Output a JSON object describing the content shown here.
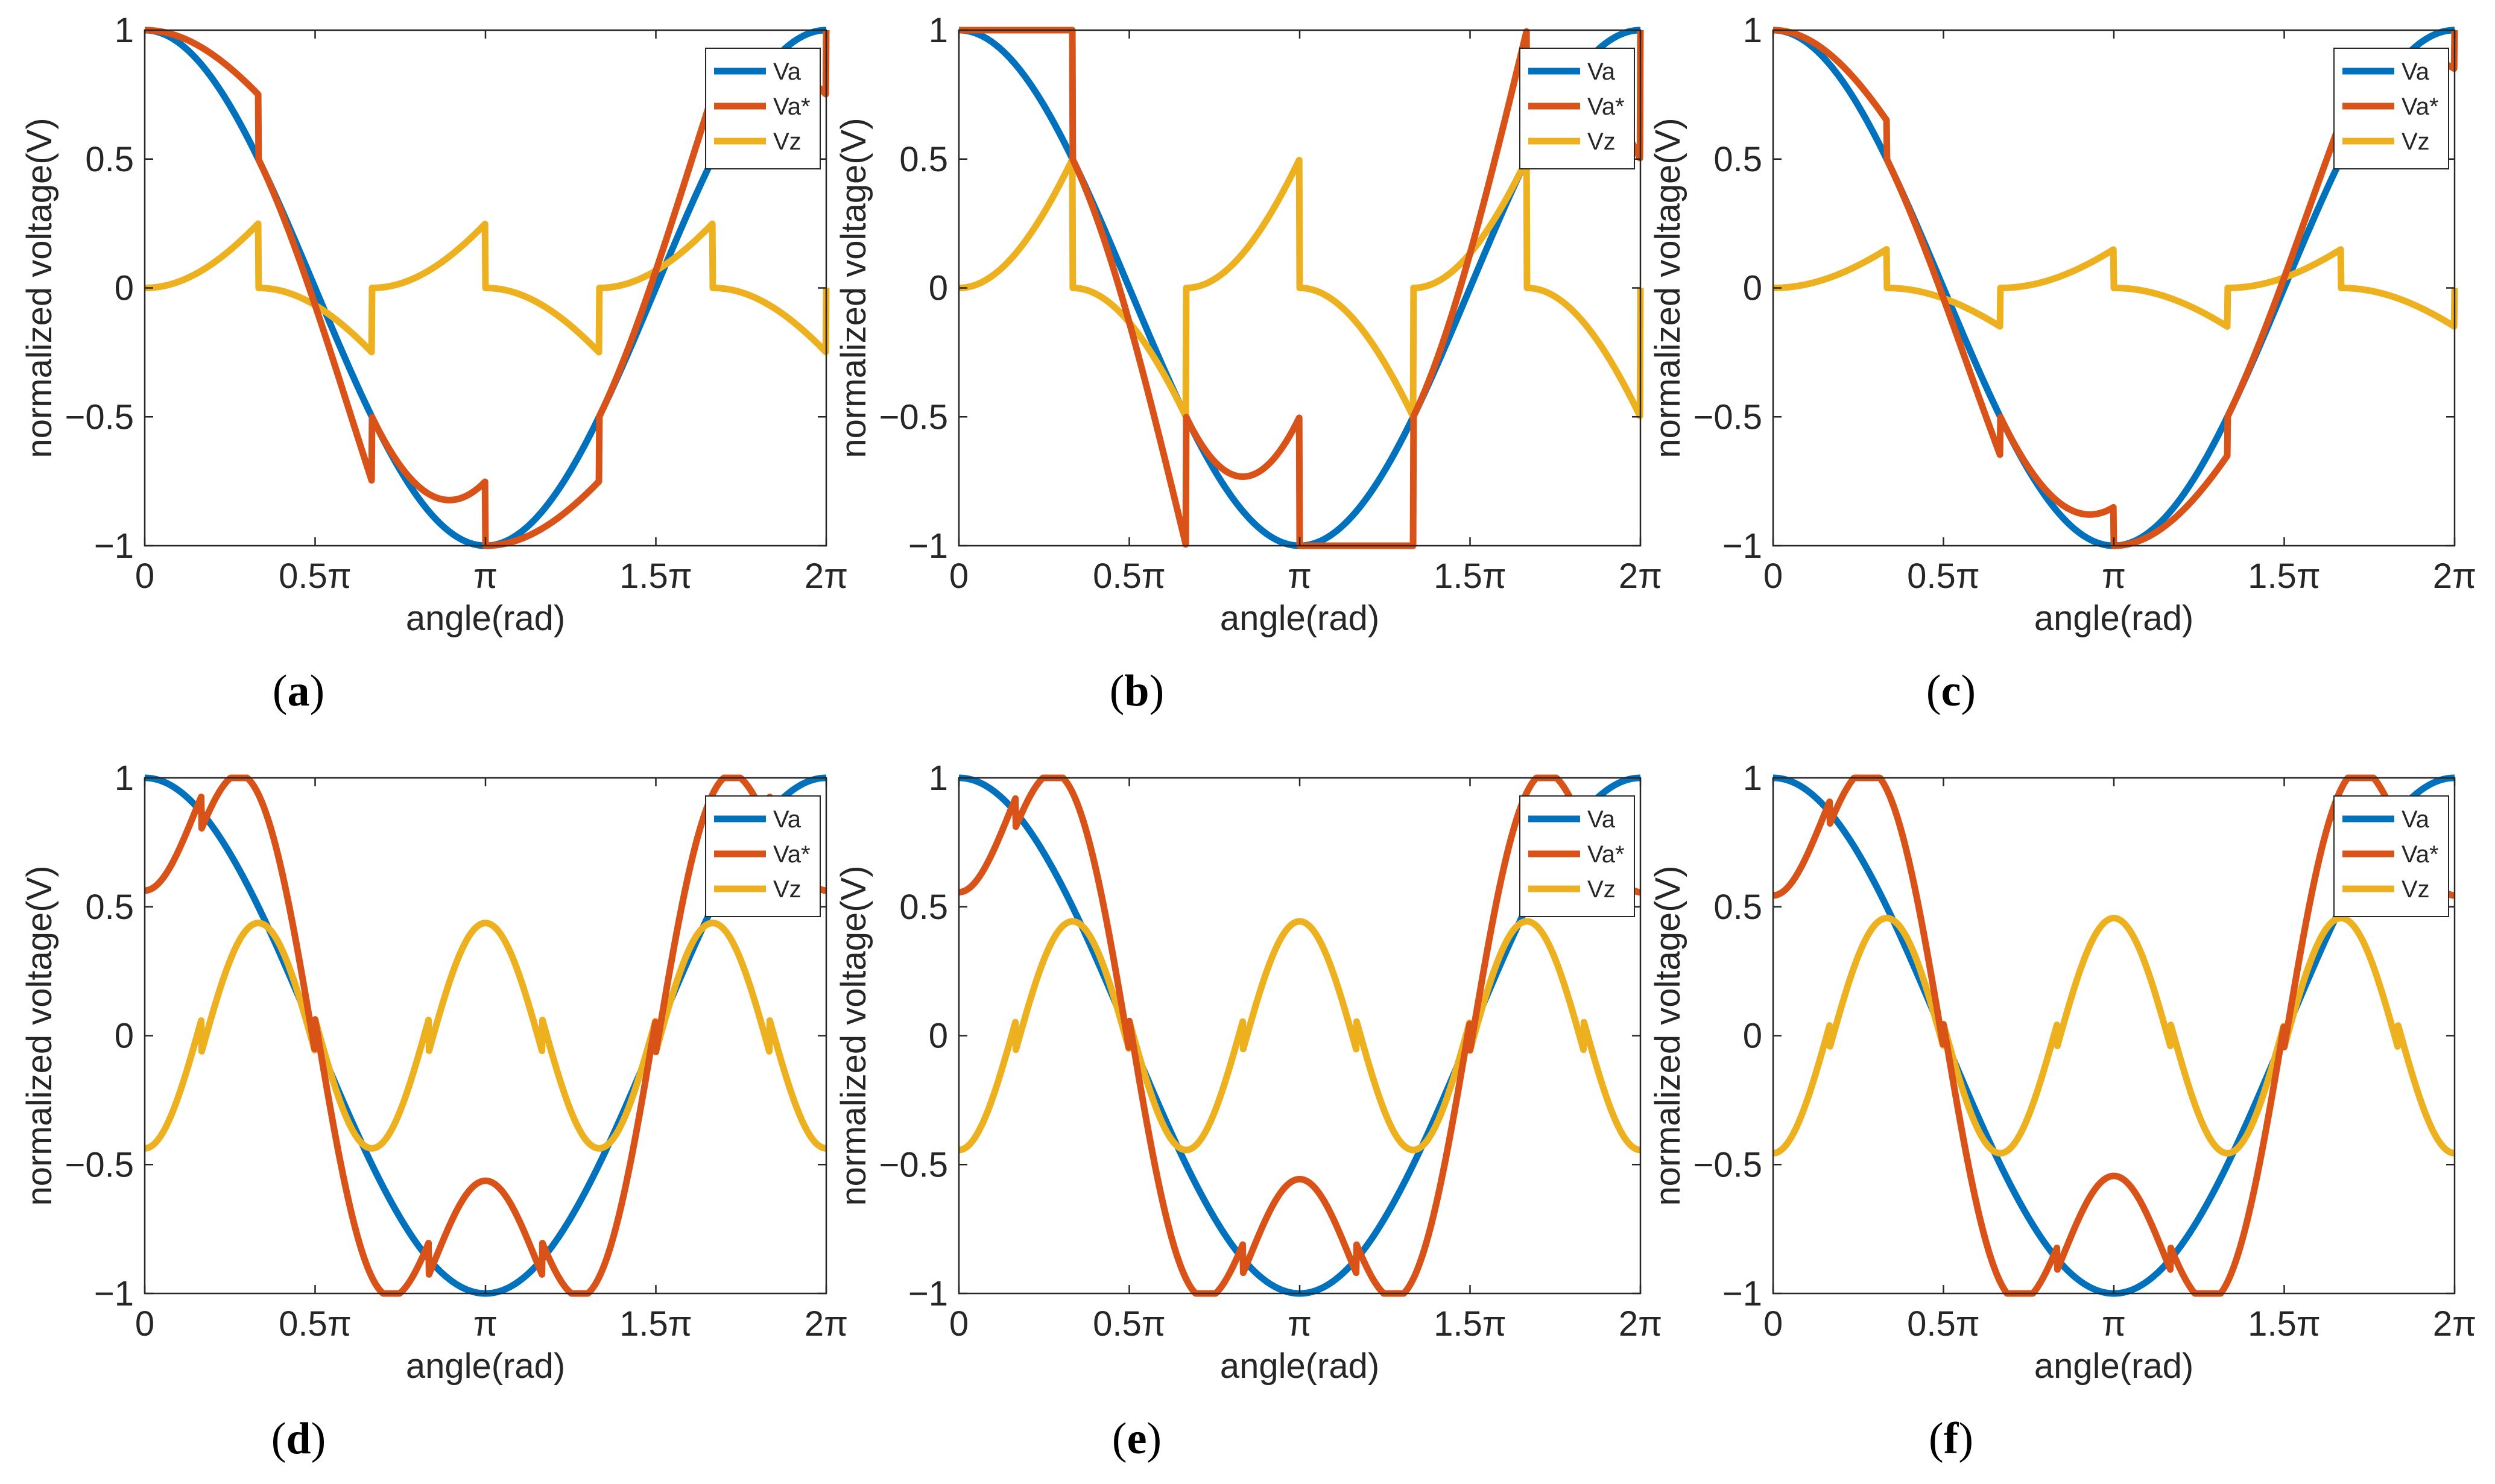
{
  "figure": {
    "panel_labels": [
      "a",
      "b",
      "c",
      "d",
      "e",
      "f"
    ]
  },
  "colors": {
    "Va": "#0072BD",
    "Va_star": "#D95319",
    "Vz": "#EDB120",
    "axis": "#262626",
    "frame": "#262626"
  },
  "chart_data": [
    {
      "panel": "a",
      "type": "line",
      "xlabel": "angle(rad)",
      "ylabel": "normalized voltage(V)",
      "xlim": [
        0,
        6.2832
      ],
      "ylim": [
        -1,
        1
      ],
      "xticks": [
        0,
        1.5708,
        3.1416,
        4.7124,
        6.2832
      ],
      "xticklabels": [
        "0",
        "0.5π",
        "π",
        "1.5π",
        "2π"
      ],
      "yticks": [
        -1,
        -0.5,
        0,
        0.5,
        1
      ],
      "yticklabels": [
        "−1",
        "−0.5",
        "0",
        "0.5",
        "1"
      ],
      "legend": [
        "Va",
        "Va*",
        "Vz"
      ],
      "legend_position": "top-right",
      "series": [
        {
          "name": "Va",
          "type": "cosine",
          "amplitude": 1
        },
        {
          "name": "Va*",
          "type": "cos_plus_vz"
        },
        {
          "name": "Vz",
          "type": "vz",
          "mode": "minmax",
          "k": 0.5,
          "amp": 0.866,
          "offset": 0
        }
      ]
    },
    {
      "panel": "b",
      "type": "line",
      "xlabel": "angle(rad)",
      "ylabel": "normalized voltage(V)",
      "xlim": [
        0,
        6.2832
      ],
      "ylim": [
        -1,
        1
      ],
      "xticks": [
        0,
        1.5708,
        3.1416,
        4.7124,
        6.2832
      ],
      "xticklabels": [
        "0",
        "0.5π",
        "π",
        "1.5π",
        "2π"
      ],
      "yticks": [
        -1,
        -0.5,
        0,
        0.5,
        1
      ],
      "yticklabels": [
        "−1",
        "−0.5",
        "0",
        "0.5",
        "1"
      ],
      "legend": [
        "Va",
        "Va*",
        "Vz"
      ],
      "legend_position": "top-right",
      "series": [
        {
          "name": "Va",
          "type": "cosine",
          "amplitude": 1
        },
        {
          "name": "Va*",
          "type": "cos_plus_vz"
        },
        {
          "name": "Vz",
          "type": "vz",
          "mode": "minmax",
          "k": 0,
          "amp": 0.866,
          "offset": 0
        }
      ]
    },
    {
      "panel": "c",
      "type": "line",
      "xlabel": "angle(rad)",
      "ylabel": "normalized voltage(V)",
      "xlim": [
        0,
        6.2832
      ],
      "ylim": [
        -1,
        1
      ],
      "xticks": [
        0,
        1.5708,
        3.1416,
        4.7124,
        6.2832
      ],
      "xticklabels": [
        "0",
        "0.5π",
        "π",
        "1.5π",
        "2π"
      ],
      "yticks": [
        -1,
        -0.5,
        0,
        0.5,
        1
      ],
      "yticklabels": [
        "−1",
        "−0.5",
        "0",
        "0.5",
        "1"
      ],
      "legend": [
        "Va",
        "Va*",
        "Vz"
      ],
      "legend_position": "top-right",
      "series": [
        {
          "name": "Va",
          "type": "cosine",
          "amplitude": 1
        },
        {
          "name": "Va*",
          "type": "cos_plus_vz"
        },
        {
          "name": "Vz",
          "type": "vz",
          "mode": "minmax",
          "k": 0.3,
          "amp": 0.866,
          "offset": 0
        }
      ]
    },
    {
      "panel": "d",
      "type": "line",
      "xlabel": "angle(rad)",
      "ylabel": "normalized voltage(V)",
      "xlim": [
        0,
        6.2832
      ],
      "ylim": [
        -1,
        1
      ],
      "xticks": [
        0,
        1.5708,
        3.1416,
        4.7124,
        6.2832
      ],
      "xticklabels": [
        "0",
        "0.5π",
        "π",
        "1.5π",
        "2π"
      ],
      "yticks": [
        -1,
        -0.5,
        0,
        0.5,
        1
      ],
      "yticklabels": [
        "−1",
        "−0.5",
        "0",
        "0.5",
        "1"
      ],
      "legend": [
        "Va",
        "Va*",
        "Vz"
      ],
      "legend_position": "top-right",
      "series": [
        {
          "name": "Va",
          "type": "cosine",
          "amplitude": 1
        },
        {
          "name": "Va*",
          "type": "cos_plus_vz"
        },
        {
          "name": "Vz",
          "type": "vz",
          "mode": "hybrid",
          "k": 0.5,
          "amp": 0.866,
          "offset": 0.5236
        }
      ]
    },
    {
      "panel": "e",
      "type": "line",
      "xlabel": "angle(rad)",
      "ylabel": "normalized voltage(V)",
      "xlim": [
        0,
        6.2832
      ],
      "ylim": [
        -1,
        1
      ],
      "xticks": [
        0,
        1.5708,
        3.1416,
        4.7124,
        6.2832
      ],
      "xticklabels": [
        "0",
        "0.5π",
        "π",
        "1.5π",
        "2π"
      ],
      "yticks": [
        -1,
        -0.5,
        0,
        0.5,
        1
      ],
      "yticklabels": [
        "−1",
        "−0.5",
        "0",
        "0.5",
        "1"
      ],
      "legend": [
        "Va",
        "Va*",
        "Vz"
      ],
      "legend_position": "top-right",
      "series": [
        {
          "name": "Va",
          "type": "cosine",
          "amplitude": 1
        },
        {
          "name": "Va*",
          "type": "cos_plus_vz"
        },
        {
          "name": "Vz",
          "type": "vz",
          "mode": "hybrid",
          "k": 0.45,
          "amp": 0.866,
          "offset": 0.5236
        }
      ]
    },
    {
      "panel": "f",
      "type": "line",
      "xlabel": "angle(rad)",
      "ylabel": "normalized voltage(V)",
      "xlim": [
        0,
        6.2832
      ],
      "ylim": [
        -1,
        1
      ],
      "xticks": [
        0,
        1.5708,
        3.1416,
        4.7124,
        6.2832
      ],
      "xticklabels": [
        "0",
        "0.5π",
        "π",
        "1.5π",
        "2π"
      ],
      "yticks": [
        -1,
        -0.5,
        0,
        0.5,
        1
      ],
      "yticklabels": [
        "−1",
        "−0.5",
        "0",
        "0.5",
        "1"
      ],
      "legend": [
        "Va",
        "Va*",
        "Vz"
      ],
      "legend_position": "top-right",
      "series": [
        {
          "name": "Va",
          "type": "cosine",
          "amplitude": 1
        },
        {
          "name": "Va*",
          "type": "cos_plus_vz"
        },
        {
          "name": "Vz",
          "type": "vz",
          "mode": "hybrid",
          "k": 0.35,
          "amp": 0.866,
          "offset": 0.5236
        }
      ]
    }
  ]
}
